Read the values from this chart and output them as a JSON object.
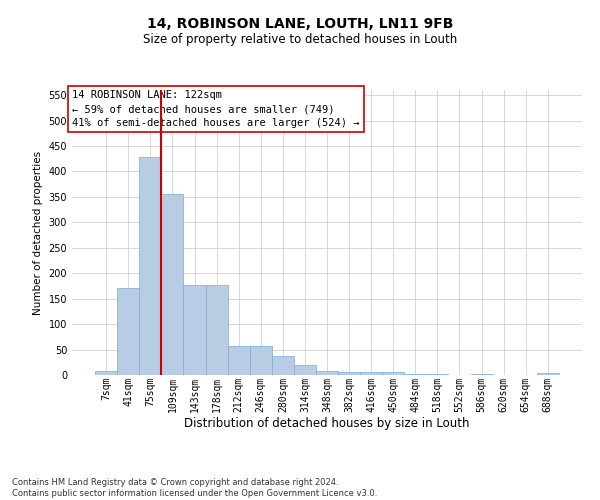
{
  "title1": "14, ROBINSON LANE, LOUTH, LN11 9FB",
  "title2": "Size of property relative to detached houses in Louth",
  "xlabel": "Distribution of detached houses by size in Louth",
  "ylabel": "Number of detached properties",
  "footnote": "Contains HM Land Registry data © Crown copyright and database right 2024.\nContains public sector information licensed under the Open Government Licence v3.0.",
  "annotation_title": "14 ROBINSON LANE: 122sqm",
  "annotation_line2": "← 59% of detached houses are smaller (749)",
  "annotation_line3": "41% of semi-detached houses are larger (524) →",
  "bar_color": "#b8cce4",
  "bar_edge_color": "#7aabdb",
  "vline_color": "#cc0000",
  "vline_x_left_edge": 2.5,
  "bin_labels": [
    "7sqm",
    "41sqm",
    "75sqm",
    "109sqm",
    "143sqm",
    "178sqm",
    "212sqm",
    "246sqm",
    "280sqm",
    "314sqm",
    "348sqm",
    "382sqm",
    "416sqm",
    "450sqm",
    "484sqm",
    "518sqm",
    "552sqm",
    "586sqm",
    "620sqm",
    "654sqm",
    "688sqm"
  ],
  "bar_values": [
    8,
    170,
    428,
    355,
    176,
    176,
    57,
    57,
    38,
    19,
    8,
    5,
    5,
    5,
    2,
    2,
    0,
    2,
    0,
    0,
    3
  ],
  "ylim": [
    0,
    560
  ],
  "yticks": [
    0,
    50,
    100,
    150,
    200,
    250,
    300,
    350,
    400,
    450,
    500,
    550
  ],
  "background_color": "#ffffff",
  "grid_color": "#c8c8c8",
  "annotation_box_color": "#ffffff",
  "annotation_box_edge": "#cc0000",
  "title1_fontsize": 10,
  "title2_fontsize": 8.5,
  "xlabel_fontsize": 8.5,
  "ylabel_fontsize": 7.5,
  "tick_fontsize": 7,
  "annotation_fontsize": 7.5,
  "footnote_fontsize": 6
}
